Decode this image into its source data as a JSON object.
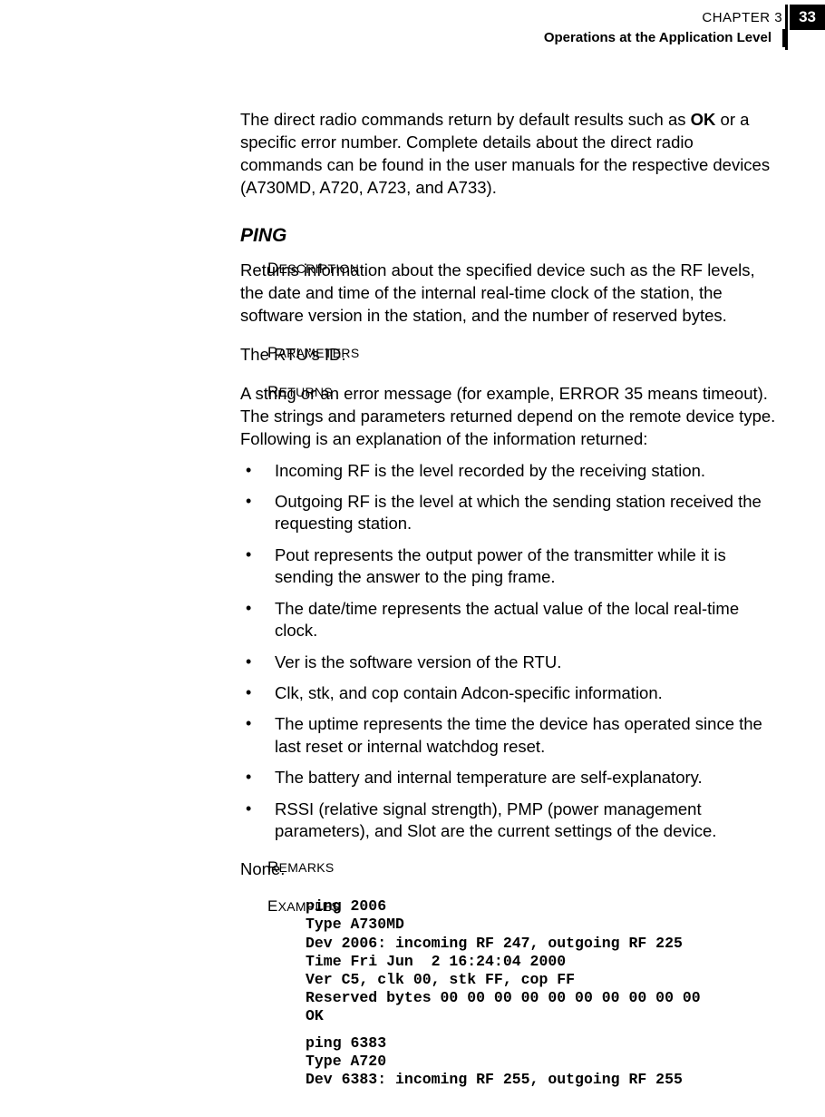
{
  "header": {
    "chapter_label": "CHAPTER 3",
    "page_number": "33",
    "section_title": "Operations at the Application Level"
  },
  "intro_paragraph": {
    "pre": "The direct radio commands return by default results such as ",
    "bold": "OK",
    "post": " or a specific error number. Complete details about the direct radio commands can be found in the user manuals for the respective devices (A730MD, A720, A723, and A733)."
  },
  "ping": {
    "heading": "PING",
    "description_label": "DESCRIPTION",
    "description_text": "Returns information about the specified device such as the RF lev­els, the date and time of the internal real-time clock of the station, the software version in the station, and the number of reserved bytes.",
    "parameters_label": "PARAMETERS",
    "parameters_text": "The RTU’s ID.",
    "returns_label": "RETURNS",
    "returns_text": "A string or an error message (for example, ERROR 35 means time­out). The strings and parameters returned depend on the remote device type. Following is an explanation of the information returned:",
    "bullets": [
      "Incoming RF is the level recorded by the receiving station.",
      "Outgoing RF is the level at which the sending station received the requesting station.",
      "Pout represents the output power of the transmitter while it is sending the answer to the ping frame.",
      "The date/time represents the actual value of the local real-time clock.",
      "Ver is the software version of the RTU.",
      "Clk, stk, and cop contain Adcon-specific information.",
      "The uptime represents the time the device has operated since the last reset or internal watchdog reset.",
      "The battery and internal temperature are self-explanatory.",
      "RSSI (relative signal strength), PMP (power management parameters), and Slot are the current settings of the device."
    ],
    "remarks_label": "REMARKS",
    "remarks_text": "None.",
    "examples_label": "EXAMPLES",
    "example_block_1": "ping 2006\nType A730MD\nDev 2006: incoming RF 247, outgoing RF 225\nTime Fri Jun  2 16:24:04 2000\nVer C5, clk 00, stk FF, cop FF\nReserved bytes 00 00 00 00 00 00 00 00 00 00\nOK",
    "example_block_2": "ping 6383\nType A720\nDev 6383: incoming RF 255, outgoing RF 255"
  }
}
